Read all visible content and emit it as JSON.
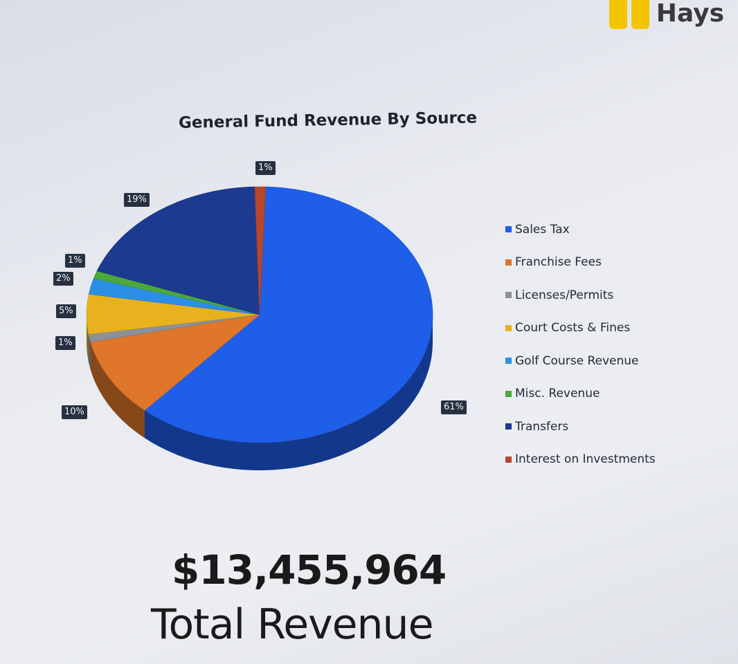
{
  "logo": {
    "text": "Hays",
    "color": "#f2c500"
  },
  "chart_data": {
    "type": "pie",
    "title": "General Fund Revenue By Source",
    "categories": [
      "Sales Tax",
      "Franchise Fees",
      "Licenses/Permits",
      "Court Costs & Fines",
      "Golf Course Revenue",
      "Misc. Revenue",
      "Transfers",
      "Interest on Investments"
    ],
    "values": [
      61,
      10,
      1,
      5,
      2,
      1,
      19,
      1
    ],
    "labels": [
      "61%",
      "10%",
      "1%",
      "5%",
      "2%",
      "1%",
      "19%",
      "1%"
    ],
    "colors": [
      "#1f5ee8",
      "#e0762a",
      "#8c9097",
      "#e8b21e",
      "#2b8fe8",
      "#4aa83e",
      "#1c3a8f",
      "#b8462a"
    ],
    "legend_position": "right"
  },
  "total": {
    "amount": "$13,455,964",
    "label": "Total Revenue"
  }
}
